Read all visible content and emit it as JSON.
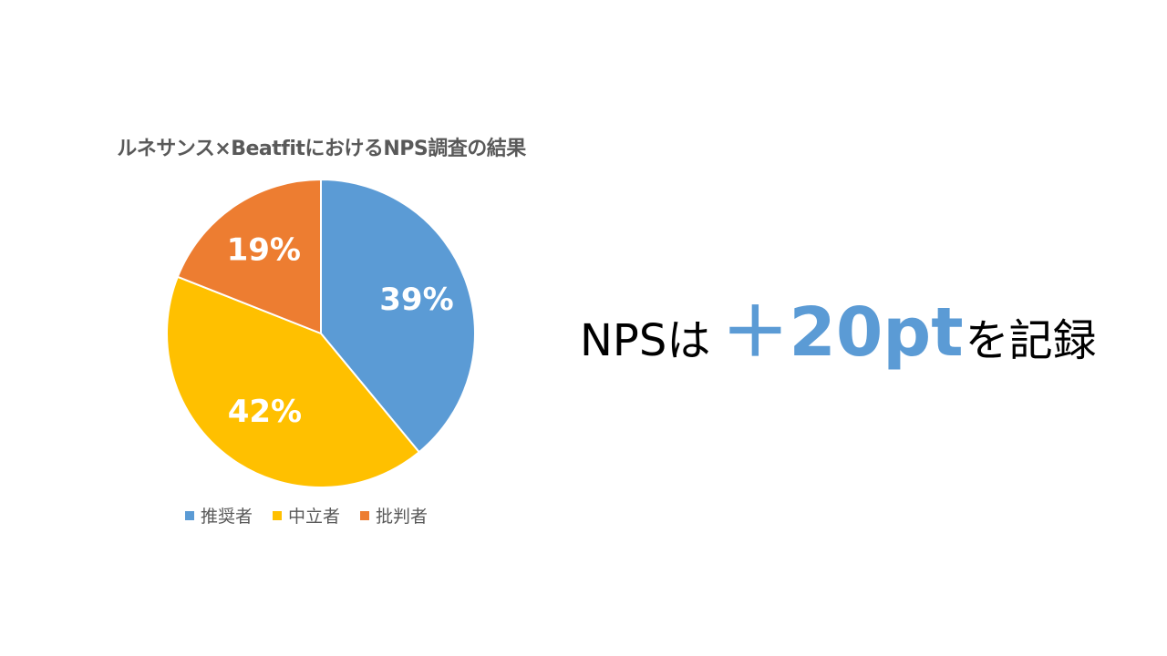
{
  "chart_data": {
    "type": "pie",
    "title": "ルネサンス×BeatfitにおけるNPS調査の結果",
    "categories": [
      "推奨者",
      "中立者",
      "批判者"
    ],
    "values": [
      39,
      42,
      19
    ],
    "labels": [
      "39%",
      "42%",
      "19%"
    ],
    "colors": [
      "#5b9bd5",
      "#ffc000",
      "#ed7d31"
    ],
    "legend_position": "bottom"
  },
  "headline": {
    "prefix": "NPSは",
    "value": "＋20pt",
    "suffix": "を記録",
    "accent_color": "#5b9bd5"
  }
}
